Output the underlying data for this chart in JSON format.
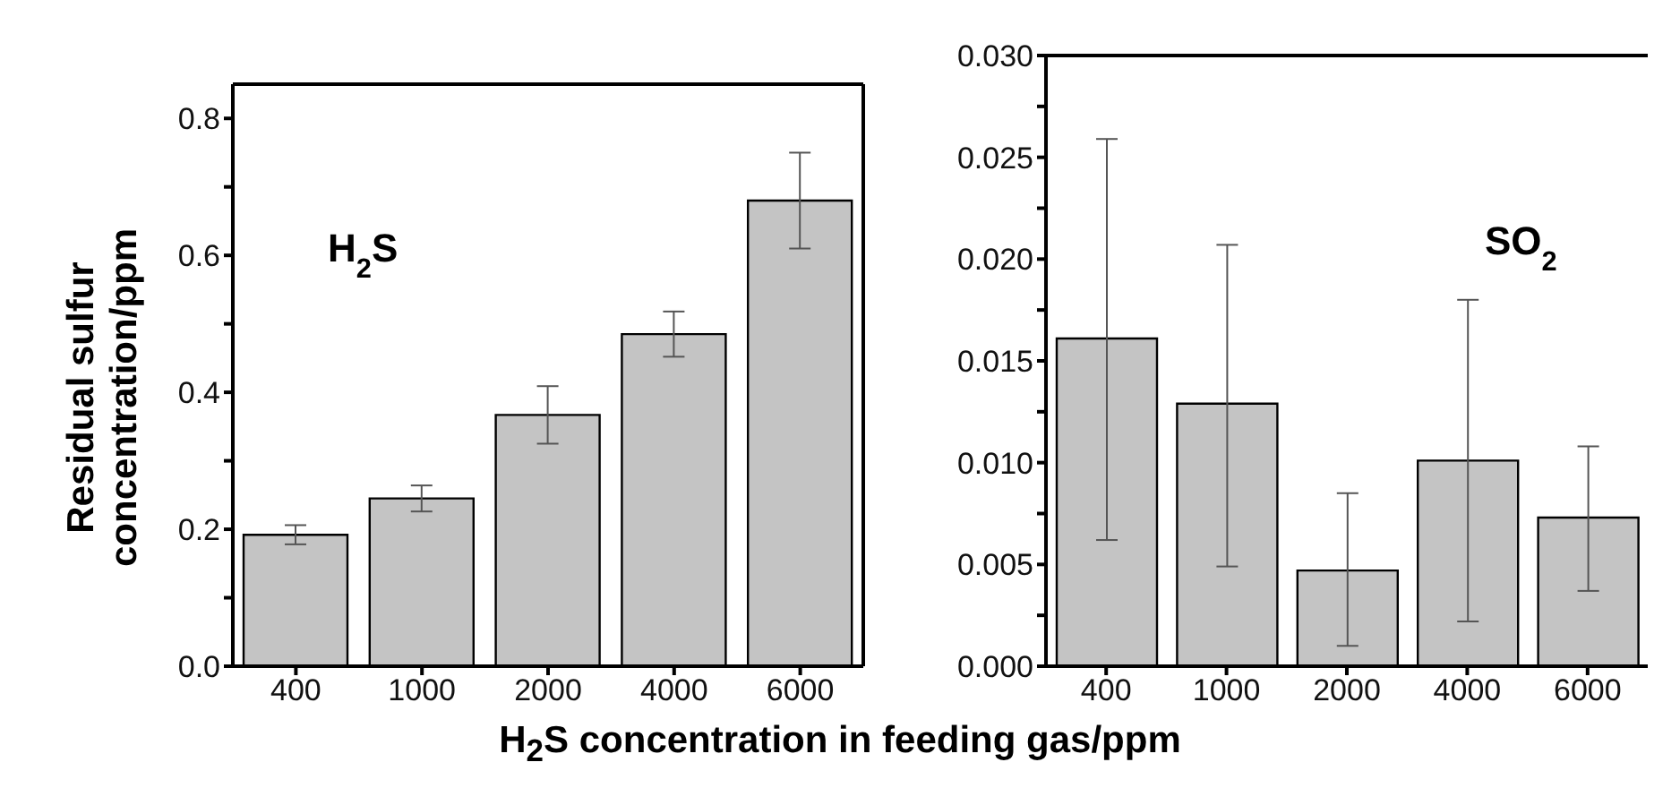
{
  "chart_data": [
    {
      "type": "bar",
      "ylabel": "Residual sulfur\nconcentration/ppm",
      "xlabel": "H$_{2}$S concentration in feeding gas/ppm",
      "categories": [
        "400",
        "1000",
        "2000",
        "4000",
        "6000"
      ],
      "values": [
        0.192,
        0.245,
        0.367,
        0.485,
        0.68
      ],
      "errors": [
        0.014,
        0.019,
        0.042,
        0.033,
        0.07
      ],
      "color": "#c4c4c4",
      "ylim": [
        0,
        0.85
      ],
      "yticks": [
        {
          "value": 0,
          "label": "0.0"
        },
        {
          "value": 0.1,
          "label": null
        },
        0.2,
        {
          "value": 0.3,
          "label": null
        },
        0.4,
        {
          "value": 0.5,
          "label": null
        },
        0.6,
        {
          "value": 0.7,
          "label": null
        },
        0.8
      ],
      "annotations": [
        "H$_{2}$S"
      ]
    },
    {
      "type": "bar",
      "categories": [
        "400",
        "1000",
        "2000",
        "4000",
        "6000"
      ],
      "values": [
        0.0161,
        0.0129,
        0.0047,
        0.0101,
        0.0073
      ],
      "errors": [
        [
          0.0062,
          0.0259
        ],
        [
          0.0049,
          0.0207
        ],
        [
          0.001,
          0.0085
        ],
        [
          0.0022,
          0.018
        ],
        [
          0.0037,
          0.0108
        ]
      ],
      "color": "#c4c4c4",
      "ylim": [
        0,
        0.03
      ],
      "yticks": [
        {
          "value": 0,
          "label": "0.000"
        },
        {
          "value": 0.0025,
          "label": null
        },
        0.005,
        {
          "value": 0.0075,
          "label": null
        },
        {
          "value": 0.01,
          "label": "0.010"
        },
        {
          "value": 0.0125,
          "label": null
        },
        0.015,
        {
          "value": 0.0175,
          "label": null
        },
        {
          "value": 0.02,
          "label": "0.020"
        },
        {
          "value": 0.0225,
          "label": null
        },
        0.025,
        {
          "value": 0.0275,
          "label": null
        },
        {
          "value": 0.03,
          "label": "0.030"
        }
      ],
      "annotations": [
        "SO$_{2}$"
      ]
    }
  ]
}
